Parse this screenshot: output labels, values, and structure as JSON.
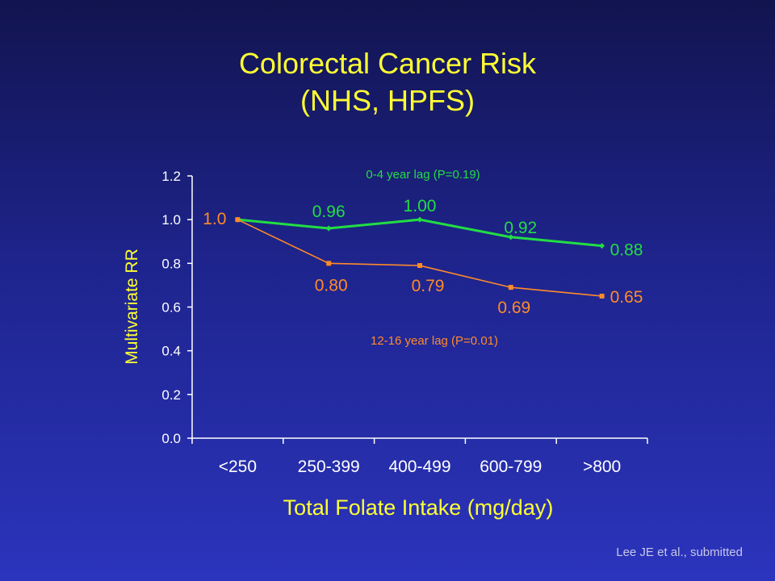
{
  "slide": {
    "title_line1": "Colorectal Cancer Risk",
    "title_line2": "(NHS, HPFS)",
    "citation": "Lee JE et al., submitted"
  },
  "colors": {
    "background": "#1e248c",
    "title": "#ffff33",
    "axis": "#ffffff",
    "series_0_4": "#22dd44",
    "series_12_16": "#ff8a2a"
  },
  "chart_data": {
    "type": "line",
    "categories": [
      "<250",
      "250-399",
      "400-499",
      "600-799",
      ">800"
    ],
    "xlabel": "Total Folate Intake (mg/day)",
    "ylabel": "Multivariate RR",
    "ylim": [
      0.0,
      1.2
    ],
    "yticks": [
      "0.0",
      "0.2",
      "0.4",
      "0.6",
      "0.8",
      "1.0",
      "1.2"
    ],
    "grid": false,
    "series": [
      {
        "name": "0-4 year lag (P=0.19)",
        "values": [
          1.0,
          0.96,
          1.0,
          0.92,
          0.88
        ],
        "labels": [
          "",
          "0.96",
          "1.00",
          "0.92",
          "0.88"
        ],
        "color": "#22dd44"
      },
      {
        "name": "12-16 year lag (P=0.01)",
        "values": [
          1.0,
          0.8,
          0.79,
          0.69,
          0.65
        ],
        "labels": [
          "1.0",
          "0.80",
          "0.79",
          "0.69",
          "0.65"
        ],
        "color": "#ff8a2a"
      }
    ]
  }
}
